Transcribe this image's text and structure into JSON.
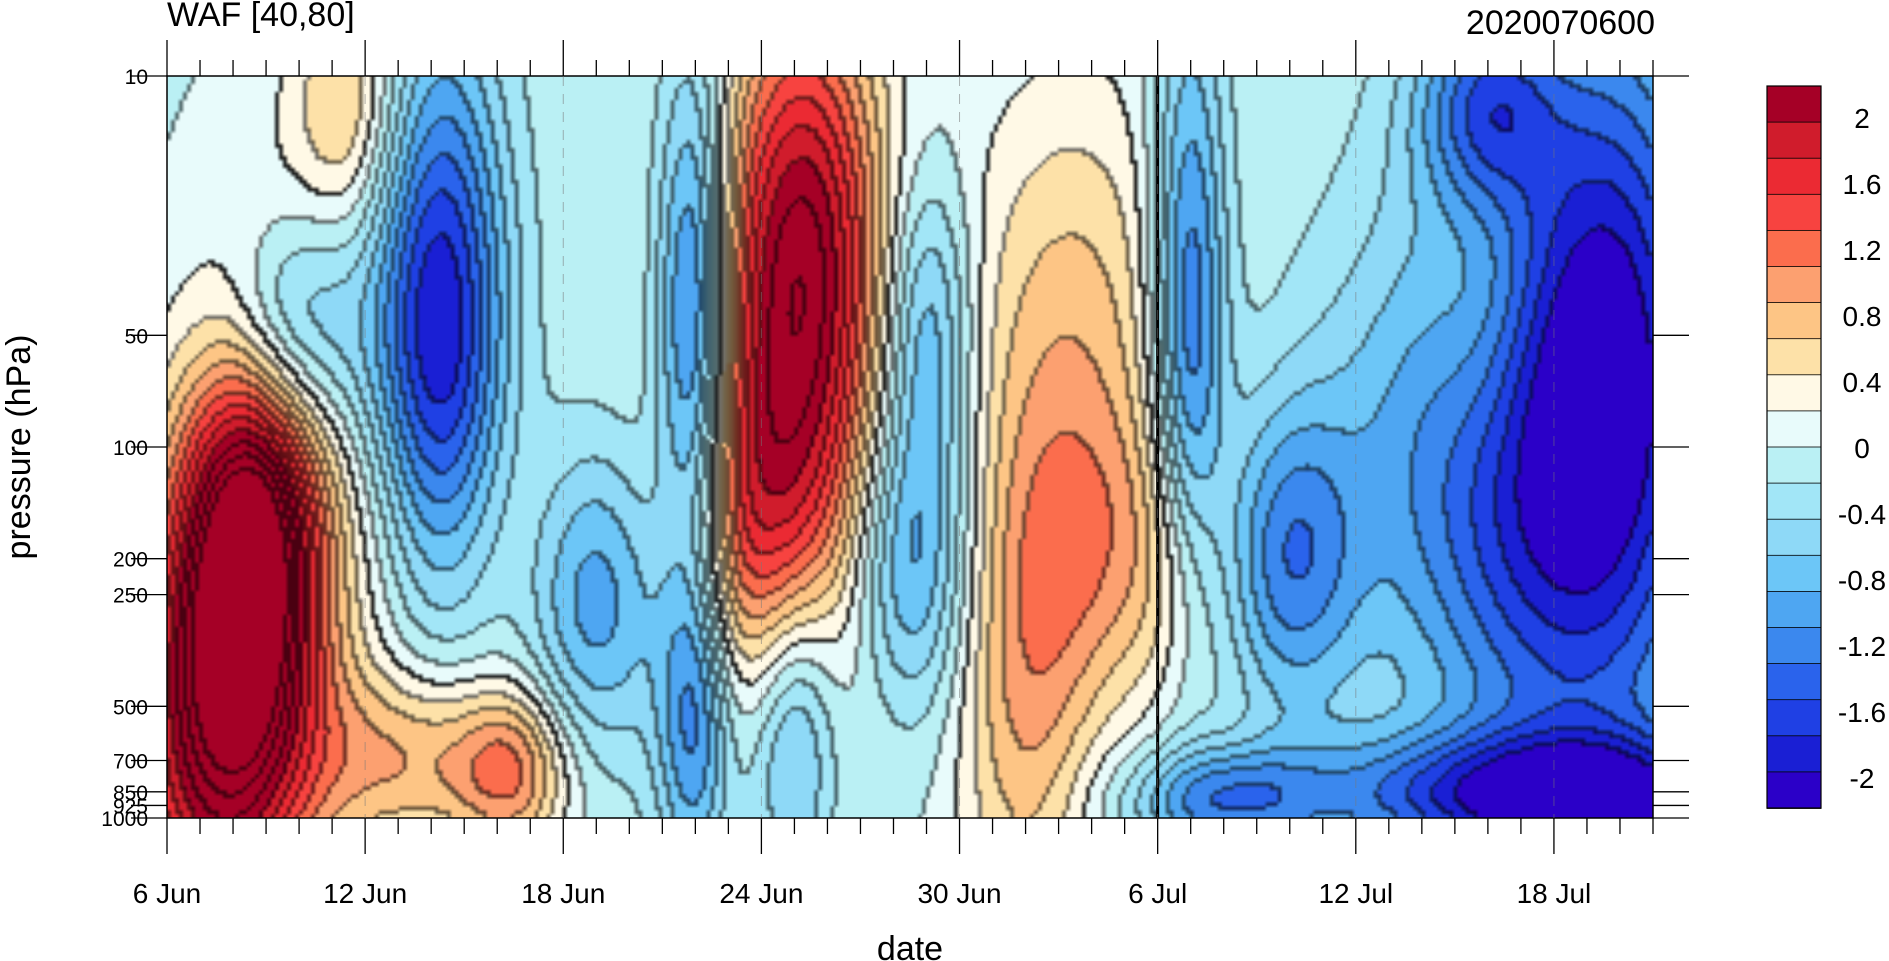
{
  "chart_data": {
    "type": "heatmap",
    "title": "WAF [40,80]",
    "subtitle": "2020070600",
    "xlabel": "date",
    "ylabel": "pressure (hPa)",
    "x_tick_labels": [
      "6 Jun",
      "12 Jun",
      "18 Jun",
      "24 Jun",
      "30 Jun",
      "6 Jul",
      "12 Jul",
      "18 Jul"
    ],
    "x_tick_days": [
      0,
      6,
      12,
      18,
      24,
      30,
      36,
      42
    ],
    "x_range_days": [
      0,
      45
    ],
    "y_tick_labels": [
      "10",
      "50",
      "100",
      "200",
      "250",
      "500",
      "700",
      "850",
      "925",
      "1000"
    ],
    "y_tick_values": [
      10,
      50,
      100,
      200,
      250,
      500,
      700,
      850,
      925,
      1000
    ],
    "y_scale": "log",
    "ylim": [
      1000,
      10
    ],
    "analysis_time_day": 30,
    "colorbar": {
      "labels": [
        "2",
        "1.6",
        "1.2",
        "0.8",
        "0.4",
        "0",
        "-0.4",
        "-0.8",
        "-1.2",
        "-1.6",
        "-2"
      ],
      "levels": [
        -2.2,
        -2.0,
        -1.8,
        -1.6,
        -1.4,
        -1.2,
        -1.0,
        -0.8,
        -0.6,
        -0.4,
        -0.2,
        0,
        0.2,
        0.4,
        0.6,
        0.8,
        1.0,
        1.2,
        1.4,
        1.6,
        1.8,
        2.0,
        2.2
      ],
      "colors": [
        "#a50026",
        "#d01c2c",
        "#eb2a33",
        "#f74340",
        "#fb6d4d",
        "#fca070",
        "#fdc585",
        "#fde1a8",
        "#fff9e6",
        "#e8fbfb",
        "#baf0f4",
        "#a2e6f7",
        "#8ed9f7",
        "#6cc6f7",
        "#4ea6f2",
        "#3b88ee",
        "#2a63ec",
        "#1f40e4",
        "#1a1fd4",
        "#2b00c8"
      ]
    },
    "features": [
      {
        "day": 1.5,
        "p": 560,
        "value": 2.0,
        "sd": 2.0,
        "sp": 0.5
      },
      {
        "day": 2.6,
        "p": 200,
        "value": 1.4,
        "sd": 1.4,
        "sp": 0.35
      },
      {
        "day": 2.8,
        "p": 110,
        "value": 0.8,
        "sd": 1.6,
        "sp": 0.5
      },
      {
        "day": 5.5,
        "p": 12,
        "value": 0.7,
        "sd": 1.2,
        "sp": 0.25
      },
      {
        "day": 7.5,
        "p": 700,
        "value": 0.9,
        "sd": 2.5,
        "sp": 0.18
      },
      {
        "day": 10.5,
        "p": 760,
        "value": 0.8,
        "sd": 1.2,
        "sp": 0.15
      },
      {
        "day": 8,
        "p": 190,
        "value": 0.4,
        "sd": 2.5,
        "sp": 0.3
      },
      {
        "day": 8.3,
        "p": 52,
        "value": -1.8,
        "sd": 1.4,
        "sp": 0.55
      },
      {
        "day": 3.7,
        "p": 48,
        "value": -1.0,
        "sd": 1.5,
        "sp": 0.22
      },
      {
        "day": 19,
        "p": 60,
        "value": 1.8,
        "sd": 2.0,
        "sp": 0.6
      },
      {
        "day": 17.5,
        "p": 180,
        "value": 0.6,
        "sd": 1.5,
        "sp": 0.3
      },
      {
        "day": 19.5,
        "p": 20,
        "value": 0.7,
        "sd": 1.5,
        "sp": 0.4
      },
      {
        "day": 16,
        "p": 48,
        "value": -1.5,
        "sd": 0.8,
        "sp": 0.5
      },
      {
        "day": 16,
        "p": 560,
        "value": -1.0,
        "sd": 0.8,
        "sp": 0.3
      },
      {
        "day": 19,
        "p": 560,
        "value": -1.0,
        "sd": 1.0,
        "sp": 0.3
      },
      {
        "day": 13,
        "p": 260,
        "value": -0.9,
        "sd": 1.5,
        "sp": 0.3
      },
      {
        "day": 22.5,
        "p": 200,
        "value": -1.0,
        "sd": 1.3,
        "sp": 0.3
      },
      {
        "day": 23,
        "p": 48,
        "value": -0.9,
        "sd": 1.0,
        "sp": 0.3
      },
      {
        "day": 26,
        "p": 470,
        "value": 0.8,
        "sd": 1.5,
        "sp": 0.5
      },
      {
        "day": 27.5,
        "p": 48,
        "value": 0.7,
        "sd": 2.5,
        "sp": 0.5
      },
      {
        "day": 28.5,
        "p": 200,
        "value": 0.6,
        "sd": 1.8,
        "sp": 0.3
      },
      {
        "day": 31,
        "p": 220,
        "value": 0.5,
        "sd": 1.0,
        "sp": 0.3
      },
      {
        "day": 31,
        "p": 50,
        "value": -1.3,
        "sd": 0.8,
        "sp": 0.6
      },
      {
        "day": 34,
        "p": 200,
        "value": -1.0,
        "sd": 1.5,
        "sp": 0.3
      },
      {
        "day": 32,
        "p": 900,
        "value": -0.9,
        "sd": 2.0,
        "sp": 0.1
      },
      {
        "day": 40,
        "p": 50,
        "value": 0.4,
        "sd": 1.3,
        "sp": 0.3
      },
      {
        "day": 42,
        "p": 880,
        "value": -1.6,
        "sd": 5.0,
        "sp": 0.12
      },
      {
        "day": 40,
        "p": 100,
        "value": -0.9,
        "sd": 3.5,
        "sp": 0.5
      },
      {
        "day": 43,
        "p": 150,
        "value": -1.1,
        "sd": 3.0,
        "sp": 0.7
      },
      {
        "day": 40,
        "p": 12,
        "value": -1.1,
        "sd": 1.5,
        "sp": 0.2
      },
      {
        "day": 44,
        "p": 30,
        "value": -0.9,
        "sd": 2.0,
        "sp": 0.6
      }
    ]
  }
}
